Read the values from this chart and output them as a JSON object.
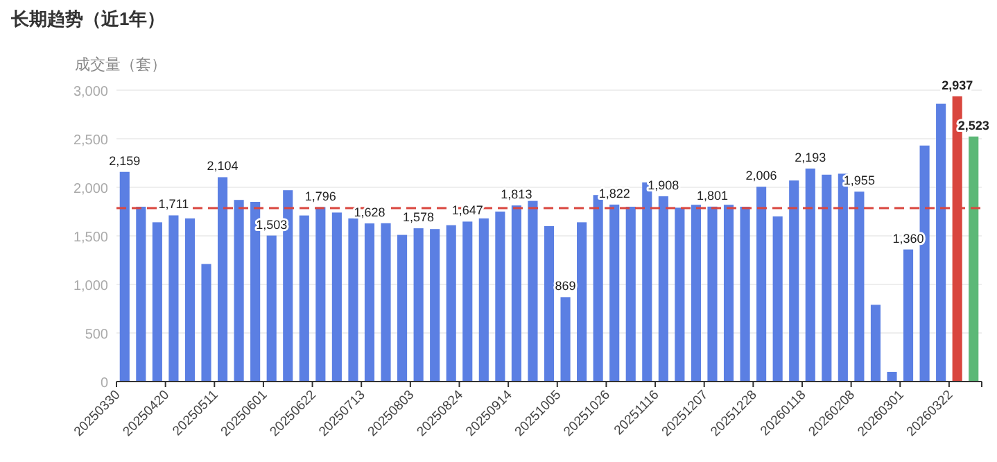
{
  "chart_data": {
    "type": "bar",
    "title": "长期趋势（近1年）",
    "ylabel": "成交量（套）",
    "categories": [
      "20250330",
      null,
      null,
      "20250420",
      null,
      null,
      "20250511",
      null,
      null,
      "20250601",
      null,
      null,
      "20250622",
      null,
      null,
      "20250713",
      null,
      null,
      "20250803",
      null,
      null,
      "20250824",
      null,
      null,
      "20250914",
      null,
      null,
      "20251005",
      null,
      null,
      "20251026",
      null,
      null,
      "20251116",
      null,
      null,
      "20251207",
      null,
      null,
      "20251228",
      null,
      null,
      "20260118",
      null,
      null,
      "20260208",
      null,
      null,
      "20260301",
      null,
      null,
      "20260322",
      null
    ],
    "values": [
      2159,
      1800,
      1640,
      1711,
      1680,
      1210,
      2104,
      1870,
      1850,
      1503,
      1970,
      1710,
      1796,
      1740,
      1680,
      1628,
      1630,
      1510,
      1578,
      1570,
      1610,
      1647,
      1680,
      1750,
      1813,
      1860,
      1600,
      869,
      1640,
      1920,
      1822,
      1800,
      2050,
      1908,
      1790,
      1820,
      1801,
      1820,
      1800,
      2006,
      1700,
      2070,
      2193,
      2130,
      2140,
      1955,
      790,
      100,
      1360,
      2430,
      2860,
      2937,
      2523
    ],
    "value_labels": [
      "2,159",
      null,
      null,
      "1,711",
      null,
      null,
      "2,104",
      null,
      null,
      "1,503",
      null,
      null,
      "1,796",
      null,
      null,
      "1,628",
      null,
      null,
      "1,578",
      null,
      null,
      "1,647",
      null,
      null,
      "1,813",
      null,
      null,
      "869",
      null,
      null,
      "1,822",
      null,
      null,
      "1,908",
      null,
      null,
      "1,801",
      null,
      null,
      "2,006",
      null,
      null,
      "2,193",
      null,
      null,
      "1,955",
      null,
      null,
      "1,360",
      null,
      null,
      "2,937",
      "2,523"
    ],
    "colors": [
      "#5b7fe3",
      "#5b7fe3",
      "#5b7fe3",
      "#5b7fe3",
      "#5b7fe3",
      "#5b7fe3",
      "#5b7fe3",
      "#5b7fe3",
      "#5b7fe3",
      "#5b7fe3",
      "#5b7fe3",
      "#5b7fe3",
      "#5b7fe3",
      "#5b7fe3",
      "#5b7fe3",
      "#5b7fe3",
      "#5b7fe3",
      "#5b7fe3",
      "#5b7fe3",
      "#5b7fe3",
      "#5b7fe3",
      "#5b7fe3",
      "#5b7fe3",
      "#5b7fe3",
      "#5b7fe3",
      "#5b7fe3",
      "#5b7fe3",
      "#5b7fe3",
      "#5b7fe3",
      "#5b7fe3",
      "#5b7fe3",
      "#5b7fe3",
      "#5b7fe3",
      "#5b7fe3",
      "#5b7fe3",
      "#5b7fe3",
      "#5b7fe3",
      "#5b7fe3",
      "#5b7fe3",
      "#5b7fe3",
      "#5b7fe3",
      "#5b7fe3",
      "#5b7fe3",
      "#5b7fe3",
      "#5b7fe3",
      "#5b7fe3",
      "#5b7fe3",
      "#5b7fe3",
      "#5b7fe3",
      "#5b7fe3",
      "#5b7fe3",
      "#d9463e",
      "#5cb877"
    ],
    "ylim": [
      0,
      3000
    ],
    "yticks": [
      0,
      {
        "value": 500,
        "label": "500"
      },
      {
        "value": 1000,
        "label": "1,000"
      },
      {
        "value": 1500,
        "label": "1,500"
      },
      {
        "value": 2000,
        "label": "2,000"
      },
      {
        "value": 2500,
        "label": "2,500"
      },
      {
        "value": 3000,
        "label": "3,000"
      }
    ],
    "grid": "y",
    "ref_lines": [
      {
        "axis": "y",
        "value": 1786,
        "color": "#d9463e",
        "line_style": "dashed"
      }
    ]
  }
}
